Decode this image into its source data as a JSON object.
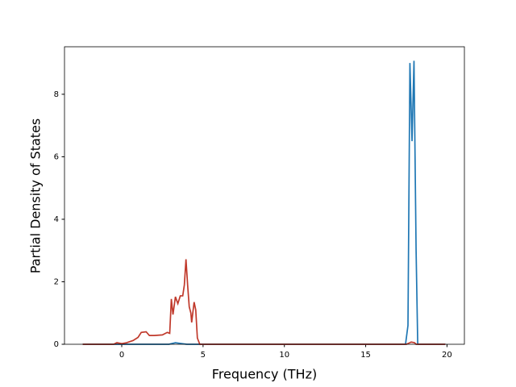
{
  "chart_data": {
    "type": "line",
    "x_label": "Frequency (THz)",
    "y_label": "Partial Density of States",
    "xlim": [
      -3.52,
      21.07
    ],
    "ylim": [
      0,
      9.52
    ],
    "xticks": [
      0,
      5,
      10,
      15,
      20
    ],
    "yticks": [
      0,
      2,
      4,
      6,
      8
    ],
    "series": [
      {
        "color": "#1f77b4",
        "x": [
          -2.4,
          2.9,
          3.3,
          3.7,
          4.0,
          17.45,
          17.6,
          17.72,
          17.85,
          17.97,
          18.1,
          18.2,
          19.9
        ],
        "values": [
          0,
          0,
          0.05,
          0.02,
          0,
          0,
          0.6,
          9.0,
          6.5,
          9.07,
          3,
          0,
          0
        ]
      },
      {
        "color": "#c0392b",
        "x": [
          -2.4,
          -0.5,
          -0.3,
          0,
          0.3,
          0.7,
          1.0,
          1.2,
          1.5,
          1.7,
          2.0,
          2.5,
          2.8,
          2.95,
          3.05,
          3.15,
          3.3,
          3.45,
          3.6,
          3.75,
          3.85,
          3.95,
          4.05,
          4.15,
          4.25,
          4.3,
          4.45,
          4.55,
          4.65,
          4.8,
          17.5,
          17.8,
          18.0,
          18.1,
          19.9
        ],
        "values": [
          0,
          0,
          0.05,
          0.02,
          0.05,
          0.12,
          0.22,
          0.38,
          0.4,
          0.28,
          0.28,
          0.3,
          0.38,
          0.35,
          1.45,
          0.95,
          1.52,
          1.3,
          1.55,
          1.55,
          1.9,
          2.72,
          1.9,
          1.2,
          1.0,
          0.7,
          1.35,
          1.1,
          0.2,
          0,
          0,
          0.07,
          0.05,
          0,
          0
        ]
      }
    ]
  }
}
